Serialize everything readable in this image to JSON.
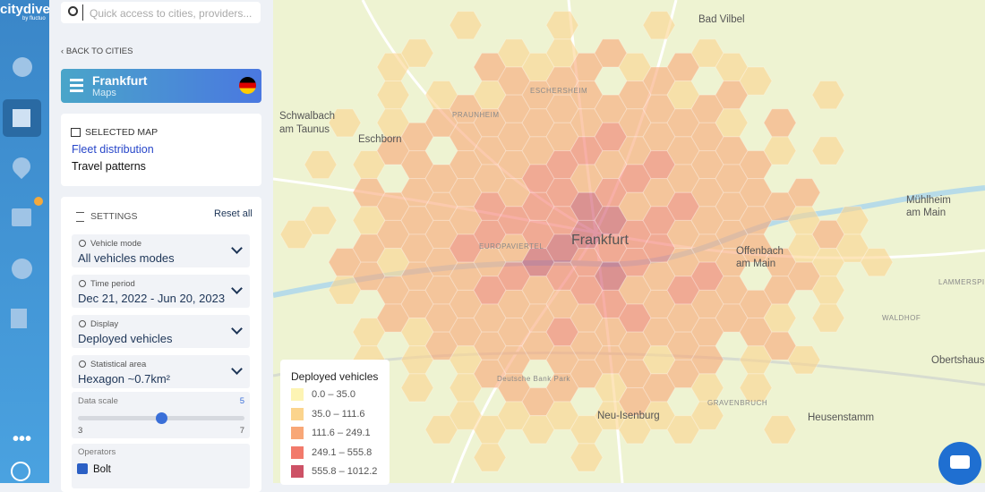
{
  "sidebar": {
    "logo": "citydive",
    "logo_sub": "by fluctuo"
  },
  "search": {
    "placeholder": "Quick access to cities, providers..."
  },
  "back_link": "BACK TO CITIES",
  "city": {
    "name": "Frankfurt",
    "section": "Maps"
  },
  "selected_map": {
    "title": "SELECTED MAP",
    "options": [
      "Fleet distribution",
      "Travel patterns"
    ],
    "active": 0
  },
  "settings": {
    "title": "SETTINGS",
    "reset": "Reset all",
    "dropdowns": [
      {
        "label": "Vehicle mode",
        "value": "All vehicles modes"
      },
      {
        "label": "Time period",
        "value": "Dec 21, 2022 - Jun 20, 2023"
      },
      {
        "label": "Display",
        "value": "Deployed vehicles"
      },
      {
        "label": "Statistical area",
        "value": "Hexagon ~0.7km²"
      }
    ],
    "data_scale": {
      "label": "Data scale",
      "value": 5,
      "min": 3,
      "max": 7
    },
    "operators": {
      "label": "Operators",
      "items": [
        {
          "name": "Bolt",
          "checked": true
        }
      ]
    }
  },
  "map": {
    "labels": [
      "Bad Vilbel",
      "Schwalbach",
      "am Taunus",
      "Eschborn",
      "PRAUNHEIM",
      "ESCHERSHEIM",
      "EUROPAVIERTEL",
      "Frankfurt",
      "Offenbach",
      "am Main",
      "Mühlheim",
      "am Main",
      "Neu-Isenburg",
      "Heusenstamm",
      "Obertshausen",
      "WALDHOF",
      "LAMMERSPIEL",
      "GRAVENBRUCH",
      "Deutsche Bank Park"
    ],
    "legend": {
      "title": "Deployed vehicles",
      "items": [
        {
          "label": "0.0 – 35.0",
          "color": "#fdf4b4"
        },
        {
          "label": "35.0 – 111.6",
          "color": "#fbd48d"
        },
        {
          "label": "111.6 – 249.1",
          "color": "#f8a777"
        },
        {
          "label": "249.1 – 555.8",
          "color": "#f27a6b"
        },
        {
          "label": "555.8 – 1012.2",
          "color": "#cd5266"
        }
      ]
    }
  }
}
